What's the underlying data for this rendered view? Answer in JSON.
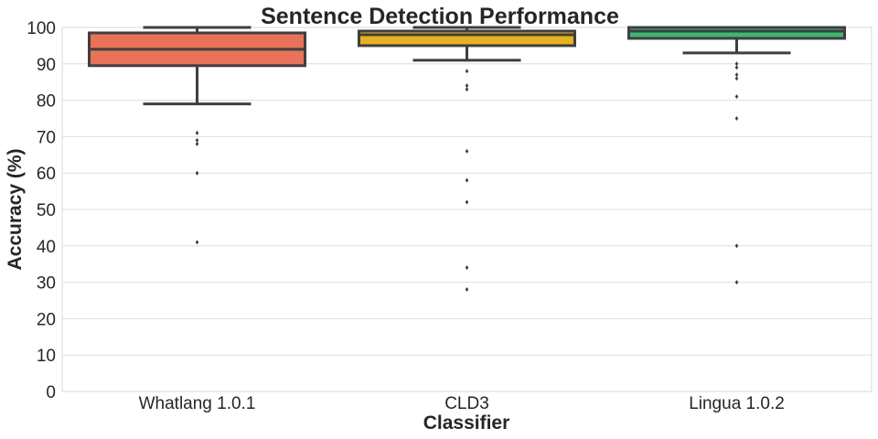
{
  "chart_data": {
    "type": "box",
    "title": "Sentence Detection Performance",
    "xlabel": "Classifier",
    "ylabel": "Accuracy (%)",
    "ylim": [
      0,
      100
    ],
    "yticks": [
      0,
      10,
      20,
      30,
      40,
      50,
      60,
      70,
      80,
      90,
      100
    ],
    "grid": "horizontal",
    "categories": [
      "Whatlang 1.0.1",
      "CLD3",
      "Lingua 1.0.2"
    ],
    "series": [
      {
        "whisker_low": 79,
        "q1": 89.5,
        "median": 94,
        "q3": 98.5,
        "whisker_high": 100,
        "outliers": [
          71,
          69,
          68,
          60,
          41
        ],
        "color": "#e8735a"
      },
      {
        "whisker_low": 91,
        "q1": 95,
        "median": 98,
        "q3": 99,
        "whisker_high": 100,
        "outliers": [
          88,
          84,
          83,
          66,
          58,
          52,
          34,
          28
        ],
        "color": "#e6b21e"
      },
      {
        "whisker_low": 93,
        "q1": 97,
        "median": 99,
        "q3": 100,
        "whisker_high": 100,
        "outliers": [
          90,
          89,
          87,
          86,
          81,
          75,
          40,
          30
        ],
        "color": "#3fb773"
      }
    ],
    "edge_color": "#3f3f3f"
  }
}
